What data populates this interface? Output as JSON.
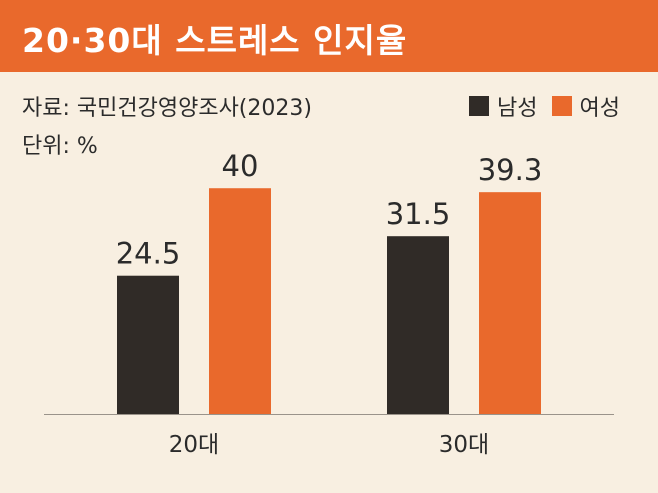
{
  "header": {
    "title": "20·30대 스트레스 인지율"
  },
  "meta": {
    "source": "자료: 국민건강영양조사(2023)",
    "unit": "단위: %"
  },
  "colors": {
    "male": "#302b27",
    "female": "#e9692c",
    "accent": "#e9692c",
    "background": "#f8efe1"
  },
  "chart_data": {
    "type": "bar",
    "categories": [
      "20대",
      "30대"
    ],
    "series": [
      {
        "name": "남성",
        "values": [
          24.5,
          31.5
        ]
      },
      {
        "name": "여성",
        "values": [
          40,
          39.3
        ]
      }
    ],
    "data_labels": [
      [
        "24.5",
        "31.5"
      ],
      [
        "40",
        "39.3"
      ]
    ],
    "ylim": [
      0,
      45
    ],
    "legend": "top-right",
    "grid": false
  }
}
